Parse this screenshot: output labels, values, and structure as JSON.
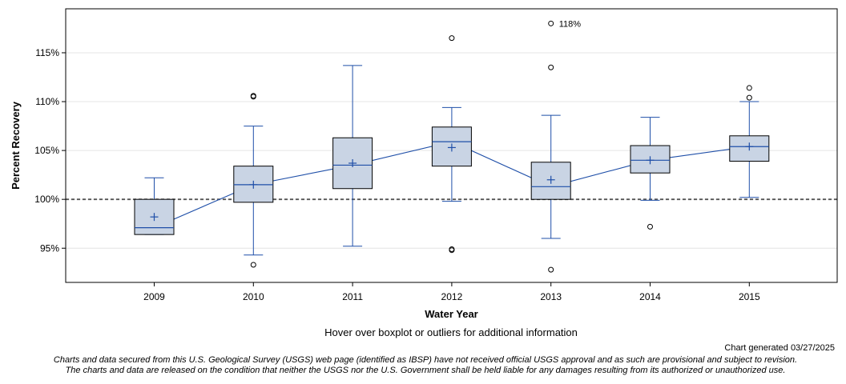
{
  "chart_data": {
    "type": "boxplot",
    "xlabel": "Water Year",
    "ylabel": "Percent Recovery",
    "ylim": [
      91.5,
      119.5
    ],
    "yticks": [
      95,
      100,
      105,
      110,
      115
    ],
    "ytick_labels": [
      "95%",
      "100%",
      "105%",
      "110%",
      "115%"
    ],
    "reference_line": 100,
    "categories": [
      "2009",
      "2010",
      "2011",
      "2012",
      "2013",
      "2014",
      "2015"
    ],
    "boxes": [
      {
        "year": "2009",
        "whisker_low": 96.4,
        "q1": 96.4,
        "median": 97.1,
        "q3": 100.0,
        "whisker_high": 102.2,
        "mean": 98.2,
        "outliers": []
      },
      {
        "year": "2010",
        "whisker_low": 94.3,
        "q1": 99.7,
        "median": 101.5,
        "q3": 103.4,
        "whisker_high": 107.5,
        "mean": 101.5,
        "outliers": [
          93.3,
          110.5,
          110.6
        ]
      },
      {
        "year": "2011",
        "whisker_low": 95.2,
        "q1": 101.1,
        "median": 103.5,
        "q3": 106.3,
        "whisker_high": 113.7,
        "mean": 103.7,
        "outliers": []
      },
      {
        "year": "2012",
        "whisker_low": 99.8,
        "q1": 103.4,
        "median": 105.9,
        "q3": 107.4,
        "whisker_high": 109.4,
        "mean": 105.3,
        "outliers": [
          94.8,
          94.9,
          116.5
        ]
      },
      {
        "year": "2013",
        "whisker_low": 96.0,
        "q1": 100.0,
        "median": 101.3,
        "q3": 103.8,
        "whisker_high": 108.6,
        "mean": 102.0,
        "outliers": [
          92.8,
          113.5,
          118.0
        ]
      },
      {
        "year": "2014",
        "whisker_low": 99.9,
        "q1": 102.7,
        "median": 104.0,
        "q3": 105.5,
        "whisker_high": 108.4,
        "mean": 104.0,
        "outliers": [
          97.2
        ]
      },
      {
        "year": "2015",
        "whisker_low": 100.2,
        "q1": 103.9,
        "median": 105.4,
        "q3": 106.5,
        "whisker_high": 110.0,
        "mean": 105.4,
        "outliers": [
          110.4,
          111.4
        ]
      }
    ],
    "annotations": [
      {
        "year": "2013",
        "value": 118.0,
        "text": "118%"
      }
    ],
    "colors": {
      "box_fill": "#c9d4e4",
      "box_stroke": "#000000",
      "whisker": "#1f4fa8",
      "median_line": "#1f4fa8",
      "mean_marker": "#1f4fa8",
      "ref_line": "#555555",
      "grid": "#e4e4e4"
    }
  },
  "footer": {
    "hover_note": "Hover over boxplot or outliers for additional information",
    "generated": "Chart generated 03/27/2025",
    "disclaimer_line1": "Charts and data secured from this U.S. Geological Survey (USGS) web page (identified as IBSP) have not received official USGS approval and as such are provisional and subject to revision.",
    "disclaimer_line2": "The charts and data are released on the condition that neither the USGS nor the U.S. Government shall be held liable for any damages resulting from its authorized or unauthorized use."
  }
}
